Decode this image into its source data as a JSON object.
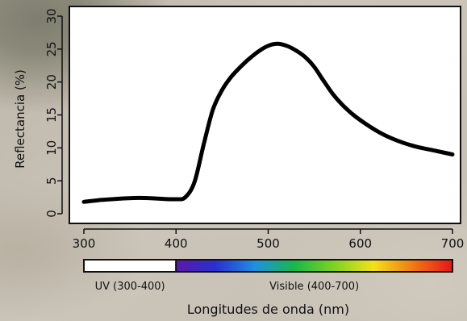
{
  "chart_data": {
    "type": "line",
    "title": "",
    "xlabel": "Longitudes de onda (nm)",
    "ylabel": "Reflectancia (%)",
    "xlim": [
      300,
      700
    ],
    "ylim": [
      0,
      30
    ],
    "xticks": [
      300,
      400,
      500,
      600,
      700
    ],
    "yticks": [
      0,
      5,
      10,
      15,
      20,
      25,
      30
    ],
    "grid": false,
    "series": [
      {
        "color": "#000000",
        "x": [
          300,
          320,
          340,
          360,
          380,
          400,
          410,
          420,
          430,
          440,
          450,
          460,
          470,
          480,
          490,
          500,
          510,
          520,
          530,
          540,
          550,
          560,
          570,
          580,
          590,
          600,
          620,
          640,
          660,
          680,
          700
        ],
        "y": [
          1.8,
          2.1,
          2.3,
          2.4,
          2.3,
          2.2,
          2.5,
          4.8,
          10.5,
          15.8,
          18.8,
          20.8,
          22.3,
          23.6,
          24.7,
          25.5,
          25.8,
          25.5,
          24.8,
          23.8,
          22.3,
          20.2,
          18.2,
          16.6,
          15.3,
          14.2,
          12.4,
          11.1,
          10.2,
          9.6,
          9.0
        ]
      }
    ],
    "spectrum_bar": {
      "uv_label": "UV (300-400)",
      "visible_label": "Visible (400-700)",
      "uv_range": [
        300,
        400
      ],
      "visible_range": [
        400,
        700
      ],
      "uv_color": "#ffffff",
      "visible_colors": [
        "#5a1aa8",
        "#2a2fd0",
        "#1f8fe0",
        "#18b84a",
        "#7ed321",
        "#f3e21a",
        "#f07a12",
        "#e8151a"
      ]
    }
  }
}
